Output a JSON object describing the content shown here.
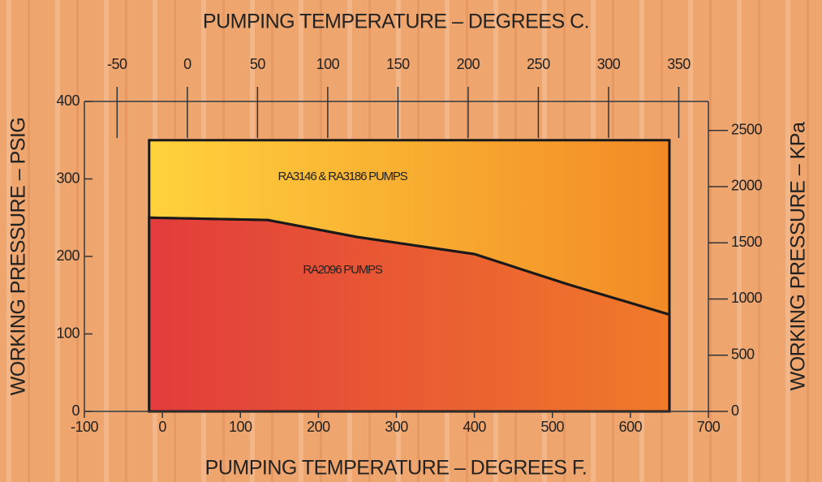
{
  "chart_data": {
    "type": "area",
    "x2label": "PUMPING TEMPERATURE – DEGREES C.",
    "xlabel": "PUMPING TEMPERATURE – DEGREES F.",
    "ylabel": "WORKING PRESSURE – PSIG",
    "y2label": "WORKING PRESSURE – KPa",
    "xlim": [
      -100,
      700
    ],
    "xticks": [
      -100,
      0,
      100,
      200,
      300,
      400,
      500,
      600,
      700
    ],
    "x2lim": [
      -73.3,
      371.1
    ],
    "x2ticks": [
      -50,
      0,
      50,
      100,
      150,
      200,
      250,
      300,
      350
    ],
    "ylim": [
      0,
      400
    ],
    "yticks": [
      0,
      100,
      200,
      300,
      400
    ],
    "y2lim": [
      0,
      2758
    ],
    "y2ticks": [
      0,
      500,
      1000,
      1500,
      2000,
      2500
    ],
    "series": [
      {
        "name": "RA3146 & RA3186 PUMPS",
        "color": [
          "#ffd23c",
          "#f28a26"
        ],
        "x": [
          -17,
          650
        ],
        "values": [
          350,
          350
        ]
      },
      {
        "name": "RA2096 PUMPS",
        "color": [
          "#e23c3c",
          "#f07a2a"
        ],
        "x": [
          -17,
          135,
          250,
          400,
          520,
          650
        ],
        "values": [
          250,
          247,
          225,
          203,
          164,
          125
        ]
      }
    ]
  }
}
